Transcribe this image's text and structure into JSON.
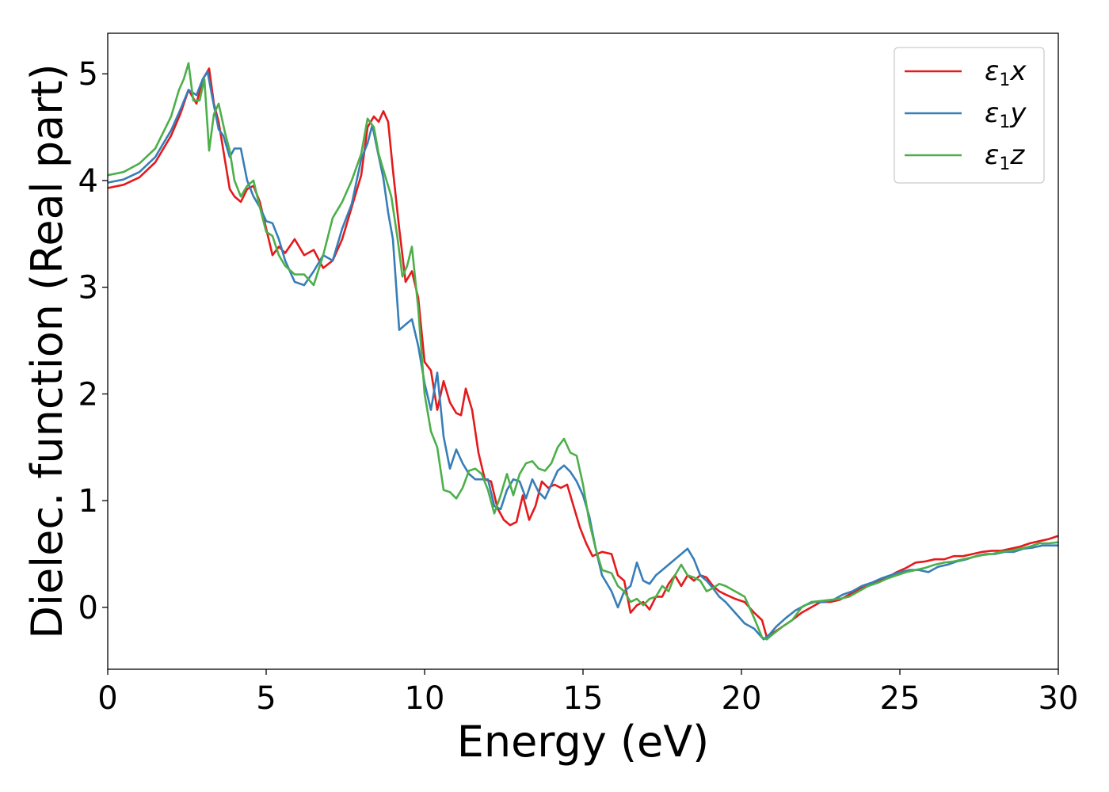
{
  "chart_data": {
    "type": "line",
    "title": "",
    "xlabel": "Energy (eV)",
    "ylabel": "Dielec. function (Real part)",
    "xlim": [
      0,
      30
    ],
    "ylim": [
      -0.58,
      5.38
    ],
    "xticks": [
      0,
      5,
      10,
      15,
      20,
      25,
      30
    ],
    "yticks": [
      0,
      1,
      2,
      3,
      4,
      5
    ],
    "grid": false,
    "legend_position": "top-right",
    "series": [
      {
        "name": "ε1x",
        "symbol": "ε",
        "sub": "1",
        "axis": "x",
        "color": "#e41a1c",
        "x": [
          0,
          0.5,
          1.0,
          1.5,
          2.0,
          2.3,
          2.55,
          2.8,
          3.0,
          3.2,
          3.35,
          3.5,
          3.65,
          3.85,
          4.0,
          4.2,
          4.4,
          4.6,
          4.8,
          5.0,
          5.2,
          5.4,
          5.6,
          5.9,
          6.2,
          6.5,
          6.8,
          7.1,
          7.4,
          7.7,
          8.0,
          8.2,
          8.4,
          8.55,
          8.7,
          8.85,
          9.0,
          9.2,
          9.4,
          9.6,
          9.8,
          10.0,
          10.2,
          10.4,
          10.6,
          10.8,
          11.0,
          11.15,
          11.3,
          11.5,
          11.7,
          11.9,
          12.1,
          12.3,
          12.5,
          12.7,
          12.9,
          13.1,
          13.3,
          13.5,
          13.7,
          13.9,
          14.1,
          14.3,
          14.5,
          14.7,
          14.9,
          15.1,
          15.3,
          15.6,
          15.9,
          16.1,
          16.3,
          16.5,
          16.7,
          16.9,
          17.1,
          17.3,
          17.5,
          17.7,
          17.9,
          18.1,
          18.3,
          18.5,
          18.7,
          18.9,
          19.1,
          19.3,
          19.5,
          19.8,
          20.1,
          20.4,
          20.65,
          20.8,
          21.0,
          21.3,
          21.6,
          21.9,
          22.2,
          22.5,
          22.8,
          23.1,
          23.4,
          23.7,
          24.0,
          24.3,
          24.6,
          24.9,
          25.2,
          25.5,
          25.8,
          26.1,
          26.4,
          26.7,
          27.0,
          27.3,
          27.6,
          27.9,
          28.2,
          28.5,
          28.8,
          29.1,
          29.4,
          29.7,
          30.0
        ],
        "y": [
          3.93,
          3.96,
          4.03,
          4.17,
          4.42,
          4.63,
          4.85,
          4.72,
          4.95,
          5.05,
          4.72,
          4.55,
          4.28,
          3.92,
          3.85,
          3.8,
          3.92,
          3.95,
          3.8,
          3.55,
          3.3,
          3.38,
          3.32,
          3.45,
          3.3,
          3.35,
          3.18,
          3.25,
          3.45,
          3.75,
          4.05,
          4.5,
          4.6,
          4.55,
          4.65,
          4.55,
          4.1,
          3.55,
          3.05,
          3.15,
          2.9,
          2.3,
          2.22,
          1.85,
          2.12,
          1.92,
          1.82,
          1.8,
          2.05,
          1.85,
          1.45,
          1.2,
          1.18,
          0.93,
          0.82,
          0.77,
          0.8,
          1.05,
          0.82,
          0.95,
          1.18,
          1.12,
          1.15,
          1.12,
          1.15,
          0.95,
          0.75,
          0.6,
          0.48,
          0.52,
          0.5,
          0.3,
          0.25,
          -0.05,
          0.02,
          0.05,
          -0.02,
          0.1,
          0.1,
          0.22,
          0.3,
          0.2,
          0.3,
          0.25,
          0.3,
          0.28,
          0.2,
          0.15,
          0.12,
          0.08,
          0.05,
          -0.05,
          -0.12,
          -0.28,
          -0.24,
          -0.18,
          -0.12,
          -0.05,
          0.0,
          0.05,
          0.05,
          0.07,
          0.12,
          0.17,
          0.2,
          0.25,
          0.28,
          0.33,
          0.37,
          0.42,
          0.43,
          0.45,
          0.45,
          0.48,
          0.48,
          0.5,
          0.52,
          0.53,
          0.53,
          0.55,
          0.57,
          0.6,
          0.62,
          0.64,
          0.67
        ]
      },
      {
        "name": "ε1y",
        "symbol": "ε",
        "sub": "1",
        "axis": "y",
        "color": "#377eb8",
        "x": [
          0,
          0.5,
          1.0,
          1.5,
          2.0,
          2.3,
          2.55,
          2.8,
          3.0,
          3.15,
          3.3,
          3.5,
          3.65,
          3.85,
          4.0,
          4.2,
          4.4,
          4.6,
          4.8,
          5.0,
          5.2,
          5.4,
          5.6,
          5.9,
          6.2,
          6.5,
          6.8,
          7.1,
          7.4,
          7.7,
          8.0,
          8.2,
          8.35,
          8.5,
          8.7,
          8.85,
          9.0,
          9.2,
          9.4,
          9.6,
          9.8,
          10.0,
          10.2,
          10.4,
          10.6,
          10.8,
          11.0,
          11.2,
          11.4,
          11.6,
          11.8,
          12.0,
          12.2,
          12.4,
          12.6,
          12.8,
          13.0,
          13.2,
          13.4,
          13.6,
          13.8,
          14.0,
          14.2,
          14.4,
          14.6,
          14.8,
          15.0,
          15.2,
          15.4,
          15.6,
          15.9,
          16.1,
          16.3,
          16.5,
          16.7,
          16.9,
          17.1,
          17.3,
          17.5,
          17.7,
          17.9,
          18.1,
          18.3,
          18.5,
          18.7,
          18.9,
          19.1,
          19.3,
          19.5,
          19.8,
          20.1,
          20.4,
          20.7,
          20.9,
          21.1,
          21.4,
          21.7,
          22.0,
          22.3,
          22.6,
          22.9,
          23.2,
          23.5,
          23.8,
          24.1,
          24.4,
          24.7,
          25.0,
          25.3,
          25.6,
          25.9,
          26.2,
          26.5,
          26.8,
          27.1,
          27.4,
          27.7,
          28.0,
          28.3,
          28.6,
          28.9,
          29.2,
          29.5,
          29.8,
          30.0
        ],
        "y": [
          3.98,
          4.01,
          4.08,
          4.22,
          4.47,
          4.67,
          4.85,
          4.8,
          4.95,
          5.02,
          4.78,
          4.48,
          4.42,
          4.22,
          4.3,
          4.3,
          4.0,
          3.85,
          3.75,
          3.62,
          3.6,
          3.45,
          3.25,
          3.05,
          3.02,
          3.15,
          3.3,
          3.25,
          3.55,
          3.78,
          4.2,
          4.35,
          4.52,
          4.3,
          4.02,
          3.7,
          3.45,
          2.6,
          2.65,
          2.7,
          2.45,
          2.1,
          1.85,
          2.2,
          1.6,
          1.3,
          1.48,
          1.35,
          1.25,
          1.2,
          1.2,
          1.2,
          0.95,
          0.92,
          1.1,
          1.2,
          1.18,
          1.02,
          1.2,
          1.08,
          1.02,
          1.15,
          1.28,
          1.33,
          1.27,
          1.18,
          1.05,
          0.85,
          0.55,
          0.3,
          0.15,
          0.0,
          0.15,
          0.2,
          0.42,
          0.25,
          0.22,
          0.3,
          0.35,
          0.4,
          0.45,
          0.5,
          0.55,
          0.45,
          0.3,
          0.25,
          0.18,
          0.1,
          0.05,
          -0.05,
          -0.15,
          -0.2,
          -0.3,
          -0.25,
          -0.18,
          -0.1,
          -0.03,
          0.02,
          0.05,
          0.05,
          0.07,
          0.12,
          0.15,
          0.2,
          0.23,
          0.27,
          0.3,
          0.33,
          0.35,
          0.35,
          0.33,
          0.38,
          0.4,
          0.43,
          0.45,
          0.48,
          0.5,
          0.5,
          0.52,
          0.52,
          0.55,
          0.56,
          0.58,
          0.58,
          0.58
        ]
      },
      {
        "name": "ε1z",
        "symbol": "ε",
        "sub": "1",
        "axis": "z",
        "color": "#4daf4a",
        "x": [
          0,
          0.5,
          1.0,
          1.5,
          2.0,
          2.25,
          2.4,
          2.55,
          2.7,
          2.9,
          3.05,
          3.2,
          3.35,
          3.5,
          3.7,
          3.85,
          4.0,
          4.2,
          4.4,
          4.6,
          4.8,
          5.0,
          5.2,
          5.4,
          5.6,
          5.9,
          6.2,
          6.5,
          6.8,
          7.1,
          7.4,
          7.7,
          8.0,
          8.2,
          8.4,
          8.55,
          8.75,
          8.95,
          9.15,
          9.3,
          9.45,
          9.6,
          9.8,
          10.0,
          10.2,
          10.4,
          10.6,
          10.8,
          11.0,
          11.2,
          11.4,
          11.6,
          11.8,
          12.0,
          12.2,
          12.4,
          12.6,
          12.8,
          13.0,
          13.2,
          13.4,
          13.6,
          13.8,
          14.0,
          14.2,
          14.4,
          14.6,
          14.8,
          15.0,
          15.2,
          15.4,
          15.6,
          15.9,
          16.1,
          16.3,
          16.5,
          16.7,
          16.9,
          17.1,
          17.3,
          17.5,
          17.7,
          17.9,
          18.1,
          18.3,
          18.5,
          18.7,
          18.9,
          19.1,
          19.3,
          19.5,
          19.8,
          20.1,
          20.4,
          20.65,
          20.8,
          21.0,
          21.3,
          21.6,
          21.9,
          22.2,
          22.5,
          22.8,
          23.1,
          23.4,
          23.7,
          24.0,
          24.3,
          24.6,
          24.9,
          25.2,
          25.5,
          25.8,
          26.1,
          26.4,
          26.7,
          27.0,
          27.3,
          27.6,
          27.9,
          28.2,
          28.5,
          28.8,
          29.1,
          29.4,
          29.7,
          30.0
        ],
        "y": [
          4.05,
          4.08,
          4.16,
          4.3,
          4.6,
          4.85,
          4.95,
          5.1,
          4.75,
          4.75,
          4.95,
          4.28,
          4.62,
          4.72,
          4.45,
          4.28,
          4.0,
          3.85,
          3.95,
          4.0,
          3.75,
          3.52,
          3.48,
          3.3,
          3.2,
          3.12,
          3.12,
          3.02,
          3.3,
          3.65,
          3.8,
          4.0,
          4.25,
          4.58,
          4.5,
          4.25,
          4.05,
          3.85,
          3.45,
          3.1,
          3.2,
          3.38,
          2.8,
          2.0,
          1.65,
          1.5,
          1.1,
          1.08,
          1.02,
          1.12,
          1.28,
          1.3,
          1.25,
          1.1,
          0.88,
          1.05,
          1.25,
          1.05,
          1.25,
          1.35,
          1.37,
          1.3,
          1.28,
          1.35,
          1.5,
          1.58,
          1.45,
          1.42,
          1.15,
          0.8,
          0.55,
          0.35,
          0.32,
          0.2,
          0.15,
          0.05,
          0.08,
          0.02,
          0.08,
          0.1,
          0.2,
          0.15,
          0.3,
          0.4,
          0.3,
          0.28,
          0.25,
          0.15,
          0.18,
          0.22,
          0.2,
          0.15,
          0.1,
          -0.1,
          -0.28,
          -0.3,
          -0.25,
          -0.18,
          -0.12,
          0.0,
          0.05,
          0.06,
          0.07,
          0.08,
          0.1,
          0.15,
          0.2,
          0.23,
          0.27,
          0.3,
          0.33,
          0.35,
          0.37,
          0.4,
          0.42,
          0.43,
          0.45,
          0.47,
          0.49,
          0.5,
          0.52,
          0.53,
          0.55,
          0.57,
          0.6,
          0.6,
          0.61
        ]
      }
    ]
  }
}
